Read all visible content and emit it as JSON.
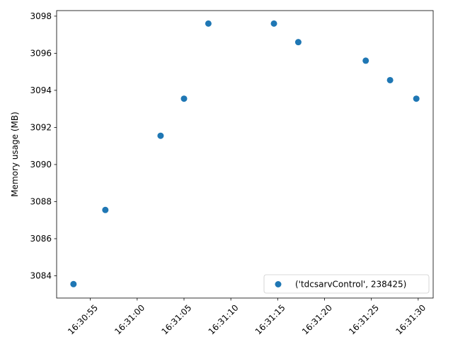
{
  "chart_data": {
    "type": "scatter",
    "title": "",
    "xlabel": "",
    "ylabel": "Memory usage (MB)",
    "x_axis_type": "time",
    "xlim": [
      "16:30:51.4",
      "16:31:31.6"
    ],
    "ylim": [
      3082.8,
      3098.3
    ],
    "x_ticks": [
      "16:30:55",
      "16:31:00",
      "16:31:05",
      "16:31:10",
      "16:31:15",
      "16:31:20",
      "16:31:25",
      "16:31:30"
    ],
    "y_ticks": [
      "3084",
      "3086",
      "3088",
      "3090",
      "3092",
      "3094",
      "3096",
      "3098"
    ],
    "grid": false,
    "legend_position": "lower right",
    "series": [
      {
        "name": "('tdcsarvControl', 238425)",
        "color": "#1f77b4",
        "points": [
          {
            "x": "16:30:53.2",
            "y": 3083.55
          },
          {
            "x": "16:30:56.6",
            "y": 3087.55
          },
          {
            "x": "16:31:02.5",
            "y": 3091.55
          },
          {
            "x": "16:31:05.0",
            "y": 3093.55
          },
          {
            "x": "16:31:07.6",
            "y": 3097.6
          },
          {
            "x": "16:31:14.6",
            "y": 3097.6
          },
          {
            "x": "16:31:17.2",
            "y": 3096.6
          },
          {
            "x": "16:31:24.4",
            "y": 3095.6
          },
          {
            "x": "16:31:27.0",
            "y": 3094.55
          },
          {
            "x": "16:31:29.8",
            "y": 3093.55
          }
        ]
      }
    ]
  }
}
